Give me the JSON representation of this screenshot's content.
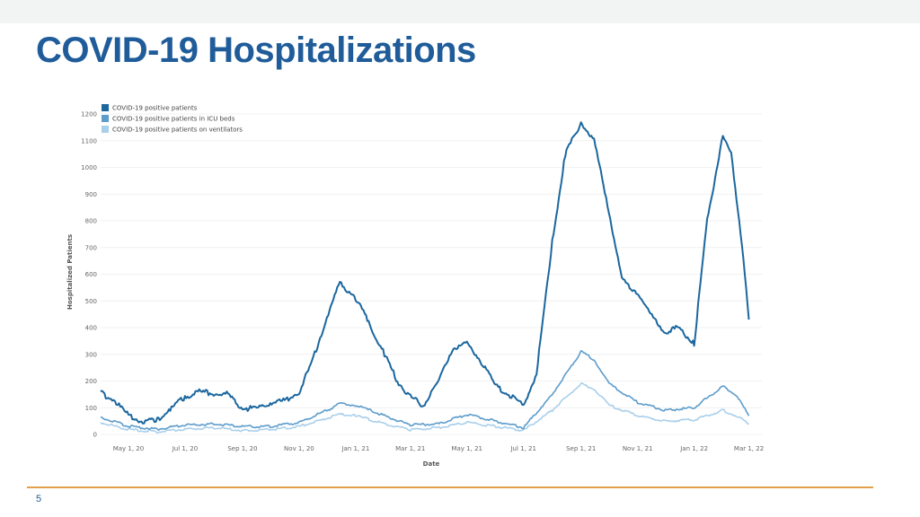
{
  "slide": {
    "title": "COVID-19 Hospitalizations",
    "page_number": "5"
  },
  "colors": {
    "series_dark": "#1b679e",
    "series_mid": "#5d9ccb",
    "series_light": "#a9cfeb",
    "title": "#1f5c99",
    "footer_rule": "#e3a04a"
  },
  "chart_data": {
    "type": "line",
    "title": "",
    "xlabel": "Date",
    "ylabel": "Hospitalized Patients",
    "ylim": [
      0,
      1200
    ],
    "yticks": [
      0,
      100,
      200,
      300,
      400,
      500,
      600,
      700,
      800,
      900,
      1000,
      1100,
      1200
    ],
    "x_range": [
      "2020-04-01",
      "2022-03-15"
    ],
    "xticks": [
      {
        "date": "2020-05-01",
        "label": "May 1, 20"
      },
      {
        "date": "2020-07-01",
        "label": "Jul 1, 20"
      },
      {
        "date": "2020-09-01",
        "label": "Sep 1, 20"
      },
      {
        "date": "2020-11-01",
        "label": "Nov 1, 20"
      },
      {
        "date": "2021-01-01",
        "label": "Jan 1, 21"
      },
      {
        "date": "2021-03-01",
        "label": "Mar 1, 21"
      },
      {
        "date": "2021-05-01",
        "label": "May 1, 21"
      },
      {
        "date": "2021-07-01",
        "label": "Jul 1, 21"
      },
      {
        "date": "2021-09-01",
        "label": "Sep 1, 21"
      },
      {
        "date": "2021-11-01",
        "label": "Nov 1, 21"
      },
      {
        "date": "2022-01-01",
        "label": "Jan 1, 22"
      },
      {
        "date": "2022-03-01",
        "label": "Mar 1, 22"
      }
    ],
    "grid": true,
    "legend_position": "top-left",
    "series": [
      {
        "name": "COVID-19 positive patients",
        "color": "#1b679e",
        "points": [
          [
            "2020-04-01",
            155
          ],
          [
            "2020-04-15",
            130
          ],
          [
            "2020-05-01",
            70
          ],
          [
            "2020-05-15",
            50
          ],
          [
            "2020-06-01",
            55
          ],
          [
            "2020-06-15",
            95
          ],
          [
            "2020-07-01",
            140
          ],
          [
            "2020-07-15",
            160
          ],
          [
            "2020-08-01",
            155
          ],
          [
            "2020-08-15",
            150
          ],
          [
            "2020-09-01",
            100
          ],
          [
            "2020-09-15",
            95
          ],
          [
            "2020-10-01",
            120
          ],
          [
            "2020-10-15",
            125
          ],
          [
            "2020-11-01",
            160
          ],
          [
            "2020-11-15",
            270
          ],
          [
            "2020-12-01",
            440
          ],
          [
            "2020-12-15",
            570
          ],
          [
            "2021-01-01",
            510
          ],
          [
            "2021-01-15",
            420
          ],
          [
            "2021-02-01",
            300
          ],
          [
            "2021-02-15",
            200
          ],
          [
            "2021-03-01",
            140
          ],
          [
            "2021-03-15",
            110
          ],
          [
            "2021-04-01",
            200
          ],
          [
            "2021-04-15",
            320
          ],
          [
            "2021-05-01",
            340
          ],
          [
            "2021-05-15",
            280
          ],
          [
            "2021-06-01",
            180
          ],
          [
            "2021-06-15",
            150
          ],
          [
            "2021-07-01",
            105
          ],
          [
            "2021-07-15",
            230
          ],
          [
            "2021-08-01",
            720
          ],
          [
            "2021-08-15",
            1050
          ],
          [
            "2021-09-01",
            1170
          ],
          [
            "2021-09-15",
            1100
          ],
          [
            "2021-10-01",
            840
          ],
          [
            "2021-10-15",
            580
          ],
          [
            "2021-11-01",
            530
          ],
          [
            "2021-11-15",
            450
          ],
          [
            "2021-12-01",
            380
          ],
          [
            "2021-12-15",
            400
          ],
          [
            "2022-01-01",
            340
          ],
          [
            "2022-01-15",
            800
          ],
          [
            "2022-02-01",
            1120
          ],
          [
            "2022-02-10",
            1050
          ],
          [
            "2022-02-20",
            760
          ],
          [
            "2022-03-01",
            430
          ]
        ]
      },
      {
        "name": "COVID-19 positive patients in ICU beds",
        "color": "#5d9ccb",
        "points": [
          [
            "2020-04-01",
            65
          ],
          [
            "2020-05-01",
            30
          ],
          [
            "2020-06-01",
            20
          ],
          [
            "2020-07-01",
            35
          ],
          [
            "2020-08-01",
            40
          ],
          [
            "2020-09-01",
            30
          ],
          [
            "2020-10-01",
            30
          ],
          [
            "2020-11-01",
            45
          ],
          [
            "2020-12-01",
            90
          ],
          [
            "2020-12-15",
            115
          ],
          [
            "2021-01-01",
            110
          ],
          [
            "2021-02-01",
            70
          ],
          [
            "2021-03-01",
            35
          ],
          [
            "2021-04-01",
            40
          ],
          [
            "2021-05-01",
            75
          ],
          [
            "2021-06-01",
            50
          ],
          [
            "2021-07-01",
            25
          ],
          [
            "2021-08-01",
            150
          ],
          [
            "2021-09-01",
            310
          ],
          [
            "2021-09-15",
            280
          ],
          [
            "2021-10-01",
            190
          ],
          [
            "2021-11-01",
            120
          ],
          [
            "2021-12-01",
            90
          ],
          [
            "2022-01-01",
            100
          ],
          [
            "2022-02-01",
            180
          ],
          [
            "2022-02-15",
            150
          ],
          [
            "2022-03-01",
            70
          ]
        ]
      },
      {
        "name": "COVID-19 positive patients on ventilators",
        "color": "#a9cfeb",
        "points": [
          [
            "2020-04-01",
            45
          ],
          [
            "2020-05-01",
            18
          ],
          [
            "2020-06-01",
            10
          ],
          [
            "2020-07-01",
            20
          ],
          [
            "2020-08-01",
            25
          ],
          [
            "2020-09-01",
            15
          ],
          [
            "2020-10-01",
            18
          ],
          [
            "2020-11-01",
            30
          ],
          [
            "2020-12-01",
            60
          ],
          [
            "2020-12-15",
            75
          ],
          [
            "2021-01-01",
            70
          ],
          [
            "2021-02-01",
            40
          ],
          [
            "2021-03-01",
            18
          ],
          [
            "2021-04-01",
            25
          ],
          [
            "2021-05-01",
            45
          ],
          [
            "2021-06-01",
            30
          ],
          [
            "2021-07-01",
            15
          ],
          [
            "2021-08-01",
            90
          ],
          [
            "2021-09-01",
            190
          ],
          [
            "2021-09-15",
            170
          ],
          [
            "2021-10-01",
            110
          ],
          [
            "2021-11-01",
            70
          ],
          [
            "2021-12-01",
            50
          ],
          [
            "2022-01-01",
            55
          ],
          [
            "2022-02-01",
            90
          ],
          [
            "2022-02-15",
            70
          ],
          [
            "2022-03-01",
            40
          ]
        ]
      }
    ]
  }
}
